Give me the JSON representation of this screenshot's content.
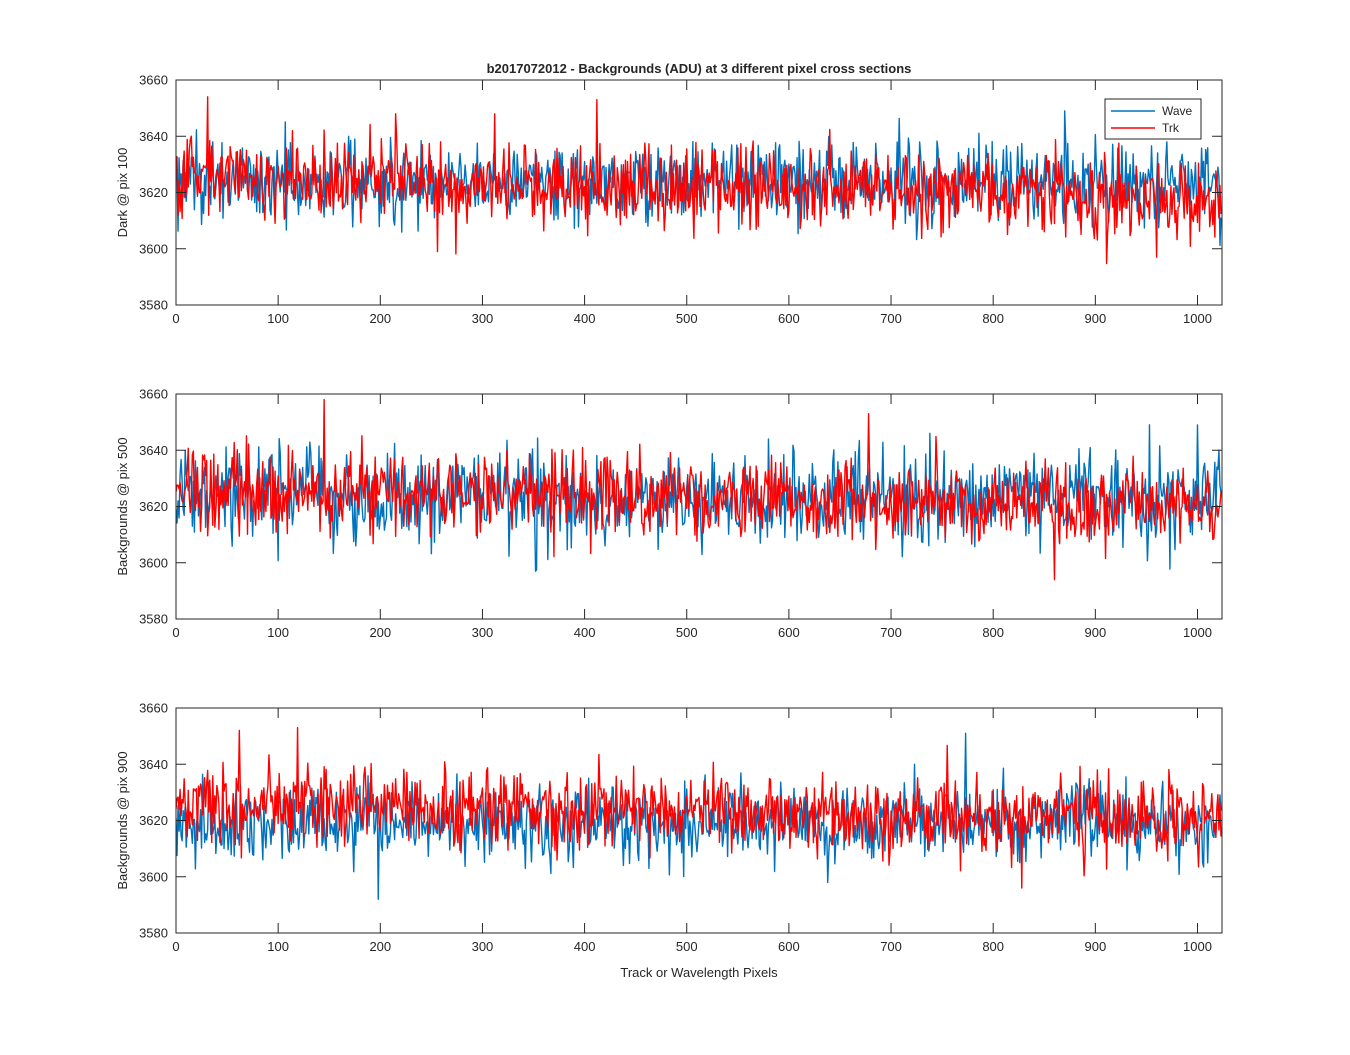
{
  "figure": {
    "title": "b2017072012 - Backgrounds (ADU) at 3 different pixel cross sections",
    "xlabel": "Track or Wavelength Pixels"
  },
  "legend": {
    "entries": [
      {
        "label": "Wave",
        "color": "#0072BD"
      },
      {
        "label": "Trk",
        "color": "#FF0000"
      }
    ],
    "placement": "top-right of first panel"
  },
  "chart_data": [
    {
      "type": "line",
      "ylabel": "Dark @ pix 100",
      "xlim": [
        0,
        1024
      ],
      "ylim": [
        3580,
        3660
      ],
      "xticks": [
        0,
        100,
        200,
        300,
        400,
        500,
        600,
        700,
        800,
        900,
        1000
      ],
      "yticks": [
        3580,
        3600,
        3620,
        3640,
        3660
      ],
      "series": [
        {
          "name": "Wave",
          "color": "#0072BD",
          "mean": 3624,
          "noise_sd": 7,
          "n_points": 1024,
          "note": "dense per-pixel noise around mean"
        },
        {
          "name": "Trk",
          "color": "#FF0000",
          "mean_start": 3626,
          "mean_end": 3618,
          "noise_sd": 7,
          "n_points": 1024
        }
      ],
      "notable_peaks": [
        {
          "series": "Trk",
          "x": 31,
          "y": 3654
        },
        {
          "series": "Trk",
          "x": 412,
          "y": 3653
        },
        {
          "series": "Trk",
          "x": 256,
          "y": 3599
        },
        {
          "series": "Wave",
          "x": 870,
          "y": 3649
        },
        {
          "series": "Trk",
          "x": 960,
          "y": 3597
        }
      ]
    },
    {
      "type": "line",
      "ylabel": "Backgrounds @ pix 500",
      "xlim": [
        0,
        1024
      ],
      "ylim": [
        3580,
        3660
      ],
      "xticks": [
        0,
        100,
        200,
        300,
        400,
        500,
        600,
        700,
        800,
        900,
        1000
      ],
      "yticks": [
        3580,
        3600,
        3620,
        3640,
        3660
      ],
      "series": [
        {
          "name": "Wave",
          "color": "#0072BD",
          "mean": 3623,
          "noise_sd": 8,
          "n_points": 1024
        },
        {
          "name": "Trk",
          "color": "#FF0000",
          "mean_start": 3626,
          "mean_end": 3620,
          "noise_sd": 7,
          "n_points": 1024
        }
      ],
      "notable_peaks": [
        {
          "series": "Trk",
          "x": 145,
          "y": 3658
        },
        {
          "series": "Wave",
          "x": 352,
          "y": 3597
        },
        {
          "series": "Trk",
          "x": 678,
          "y": 3653
        },
        {
          "series": "Trk",
          "x": 860,
          "y": 3594
        },
        {
          "series": "Wave",
          "x": 1000,
          "y": 3649
        }
      ]
    },
    {
      "type": "line",
      "ylabel": "Backgrounds @ pix 900",
      "xlim": [
        0,
        1024
      ],
      "ylim": [
        3580,
        3660
      ],
      "xticks": [
        0,
        100,
        200,
        300,
        400,
        500,
        600,
        700,
        800,
        900,
        1000
      ],
      "yticks": [
        3580,
        3600,
        3620,
        3640,
        3660
      ],
      "series": [
        {
          "name": "Wave",
          "color": "#0072BD",
          "mean": 3619,
          "noise_sd": 7,
          "n_points": 1024
        },
        {
          "name": "Trk",
          "color": "#FF0000",
          "mean_start": 3626,
          "mean_end": 3621,
          "noise_sd": 7,
          "n_points": 1024
        }
      ],
      "notable_peaks": [
        {
          "series": "Trk",
          "x": 119,
          "y": 3653
        },
        {
          "series": "Trk",
          "x": 62,
          "y": 3652
        },
        {
          "series": "Wave",
          "x": 198,
          "y": 3592
        },
        {
          "series": "Wave",
          "x": 773,
          "y": 3651
        },
        {
          "series": "Trk",
          "x": 828,
          "y": 3596
        }
      ]
    }
  ]
}
